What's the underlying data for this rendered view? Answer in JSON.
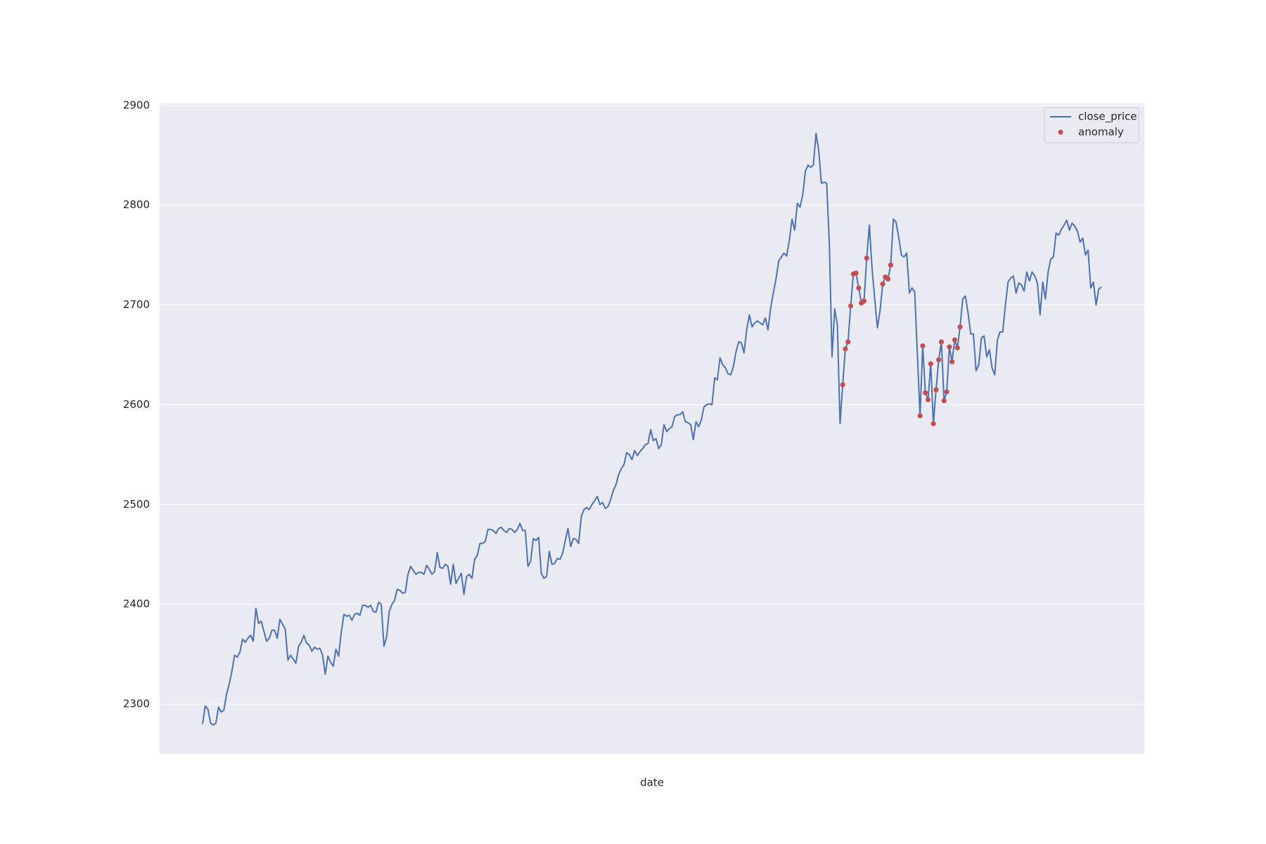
{
  "chart_data": {
    "type": "line",
    "xlabel": "date",
    "ylim": [
      2250,
      2902
    ],
    "yticks": [
      2300,
      2400,
      2500,
      2600,
      2700,
      2800,
      2900
    ],
    "grid": true,
    "legend": "upper right",
    "series": [
      {
        "name": "close_price",
        "color": "#4c72b0",
        "style": "line",
        "values": [
          2280,
          2298,
          2295,
          2281,
          2279,
          2281,
          2297,
          2292,
          2294,
          2310,
          2320,
          2333,
          2349,
          2347,
          2352,
          2365,
          2362,
          2366,
          2369,
          2363,
          2396,
          2381,
          2383,
          2373,
          2363,
          2366,
          2374,
          2374,
          2366,
          2385,
          2380,
          2375,
          2344,
          2349,
          2345,
          2341,
          2358,
          2362,
          2369,
          2361,
          2359,
          2353,
          2357,
          2355,
          2356,
          2349,
          2330,
          2348,
          2342,
          2338,
          2355,
          2348,
          2372,
          2390,
          2388,
          2389,
          2384,
          2390,
          2391,
          2389,
          2399,
          2399,
          2397,
          2399,
          2393,
          2392,
          2402,
          2400,
          2358,
          2367,
          2393,
          2400,
          2404,
          2415,
          2414,
          2411,
          2412,
          2430,
          2438,
          2434,
          2430,
          2432,
          2432,
          2430,
          2439,
          2435,
          2430,
          2433,
          2452,
          2437,
          2436,
          2440,
          2438,
          2420,
          2440,
          2421,
          2426,
          2431,
          2410,
          2428,
          2430,
          2426,
          2445,
          2449,
          2461,
          2461,
          2463,
          2475,
          2475,
          2474,
          2471,
          2476,
          2477,
          2474,
          2472,
          2476,
          2475,
          2472,
          2475,
          2481,
          2474,
          2474,
          2438,
          2443,
          2466,
          2464,
          2467,
          2431,
          2426,
          2428,
          2453,
          2440,
          2441,
          2446,
          2445,
          2451,
          2464,
          2476,
          2458,
          2466,
          2465,
          2461,
          2488,
          2495,
          2497,
          2495,
          2500,
          2504,
          2508,
          2500,
          2502,
          2496,
          2498,
          2505,
          2514,
          2520,
          2530,
          2536,
          2540,
          2552,
          2550,
          2545,
          2554,
          2549,
          2553,
          2556,
          2560,
          2561,
          2575,
          2564,
          2566,
          2556,
          2560,
          2580,
          2573,
          2576,
          2578,
          2588,
          2590,
          2590,
          2593,
          2583,
          2582,
          2580,
          2565,
          2583,
          2578,
          2585,
          2598,
          2600,
          2601,
          2600,
          2627,
          2625,
          2647,
          2640,
          2637,
          2631,
          2630,
          2638,
          2653,
          2663,
          2662,
          2652,
          2675,
          2690,
          2678,
          2682,
          2684,
          2682,
          2680,
          2687,
          2675,
          2697,
          2712,
          2726,
          2744,
          2748,
          2752,
          2749,
          2765,
          2786,
          2775,
          2802,
          2798,
          2810,
          2834,
          2840,
          2838,
          2840,
          2872,
          2855,
          2822,
          2823,
          2822,
          2760,
          2648,
          2696,
          2680,
          2581,
          2620,
          2656,
          2663,
          2699,
          2731,
          2732,
          2717,
          2702,
          2704,
          2747,
          2780,
          2737,
          2706,
          2677,
          2694,
          2721,
          2728,
          2726,
          2740,
          2786,
          2783,
          2768,
          2750,
          2748,
          2752,
          2712,
          2717,
          2713,
          2650,
          2589,
          2659,
          2612,
          2605,
          2641,
          2581,
          2615,
          2645,
          2663,
          2604,
          2613,
          2658,
          2643,
          2665,
          2657,
          2678,
          2706,
          2709,
          2692,
          2671,
          2671,
          2634,
          2640,
          2667,
          2669,
          2648,
          2655,
          2637,
          2630,
          2665,
          2673,
          2673,
          2700,
          2723,
          2727,
          2729,
          2712,
          2722,
          2720,
          2714,
          2733,
          2724,
          2733,
          2729,
          2722,
          2690,
          2723,
          2706,
          2733,
          2746,
          2748,
          2772,
          2770,
          2776,
          2780,
          2785,
          2775,
          2782,
          2779,
          2774,
          2763,
          2767,
          2750,
          2755,
          2717,
          2723,
          2700,
          2716,
          2718
        ]
      },
      {
        "name": "anomaly",
        "color": "#c44e52",
        "style": "scatter",
        "values": [
          null,
          null,
          null,
          null,
          null,
          null,
          null,
          null,
          null,
          null,
          null,
          null,
          null,
          null,
          null,
          null,
          null,
          null,
          null,
          null,
          null,
          null,
          null,
          null,
          null,
          null,
          null,
          null,
          null,
          null,
          null,
          null,
          null,
          null,
          null,
          null,
          null,
          null,
          null,
          null,
          null,
          null,
          null,
          null,
          null,
          null,
          null,
          null,
          null,
          null,
          null,
          null,
          null,
          null,
          null,
          null,
          null,
          null,
          null,
          null,
          null,
          null,
          null,
          null,
          null,
          null,
          null,
          null,
          null,
          null,
          null,
          null,
          null,
          null,
          null,
          null,
          null,
          null,
          null,
          null,
          null,
          null,
          null,
          null,
          null,
          null,
          null,
          null,
          null,
          null,
          null,
          null,
          null,
          null,
          null,
          null,
          null,
          null,
          null,
          null,
          null,
          null,
          null,
          null,
          null,
          null,
          null,
          null,
          null,
          null,
          null,
          null,
          null,
          null,
          null,
          null,
          null,
          null,
          null,
          null,
          null,
          null,
          null,
          null,
          null,
          null,
          null,
          null,
          null,
          null,
          null,
          null,
          null,
          null,
          null,
          null,
          null,
          null,
          null,
          null,
          null,
          null,
          null,
          null,
          null,
          null,
          null,
          null,
          null,
          null,
          null,
          null,
          null,
          null,
          null,
          null,
          null,
          null,
          null,
          null,
          null,
          null,
          null,
          null,
          null,
          null,
          null,
          null,
          null,
          null,
          null,
          null,
          null,
          null,
          null,
          null,
          null,
          null,
          null,
          null,
          null,
          null,
          null,
          null,
          null,
          null,
          null,
          null,
          null,
          null,
          null,
          null,
          null,
          null,
          null,
          null,
          null,
          null,
          null,
          null,
          null,
          null,
          null,
          null,
          null,
          null,
          null,
          null,
          null,
          null,
          null,
          null,
          null,
          null,
          null,
          null,
          null,
          null,
          null,
          null,
          null,
          null,
          null,
          null,
          null,
          null,
          null,
          null,
          null,
          null,
          null,
          null,
          null,
          null,
          null,
          null,
          null,
          null,
          null,
          null,
          2620,
          2656,
          2663,
          2699,
          2731,
          2732,
          2717,
          2702,
          2704,
          2747,
          null,
          null,
          null,
          null,
          null,
          2721,
          2728,
          2726,
          2740,
          null,
          null,
          null,
          null,
          null,
          null,
          null,
          null,
          null,
          null,
          2589,
          2659,
          2612,
          2605,
          2641,
          2581,
          2615,
          2645,
          2663,
          2604,
          2613,
          2658,
          2643,
          2665,
          2657,
          2678,
          null,
          null,
          null,
          null,
          null,
          null,
          null,
          null,
          null,
          null,
          null,
          null,
          null,
          null,
          null,
          null,
          null,
          null,
          null,
          null,
          null,
          null,
          null,
          null,
          null,
          null,
          null,
          null,
          null,
          null,
          null,
          null,
          null,
          null,
          null,
          null,
          null,
          null,
          null,
          null,
          null,
          null,
          null,
          null,
          null,
          null,
          null,
          null,
          null,
          null,
          null,
          null,
          null
        ]
      }
    ]
  }
}
